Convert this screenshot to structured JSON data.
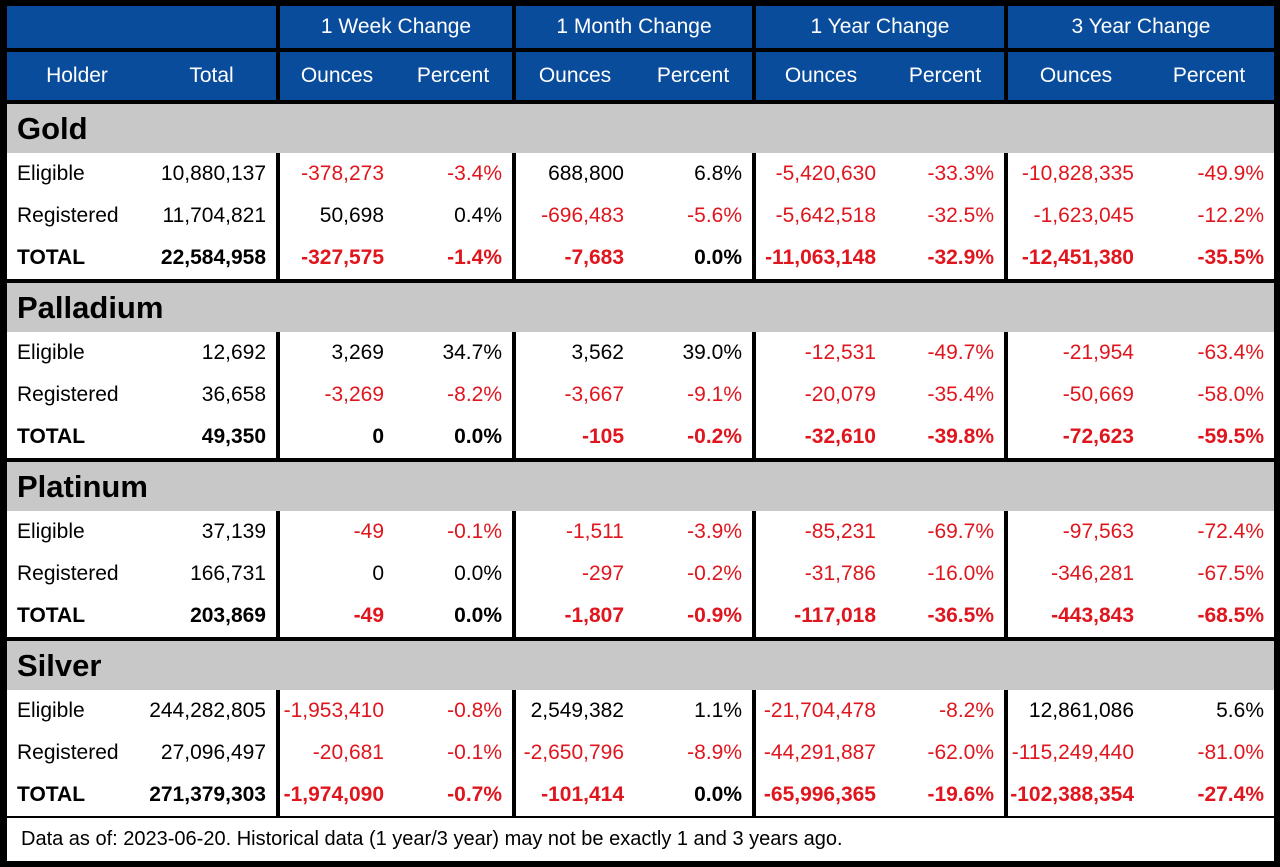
{
  "header": {
    "periods": [
      "1 Week Change",
      "1 Month Change",
      "1 Year Change",
      "3 Year Change"
    ],
    "holder": "Holder",
    "total": "Total",
    "ounces": "Ounces",
    "percent": "Percent"
  },
  "groups": [
    {
      "name": "Gold",
      "rows": [
        {
          "holder": "Eligible",
          "total": "10,880,137",
          "cells": [
            "-378,273",
            "-3.4%",
            "688,800",
            "6.8%",
            "-5,420,630",
            "-33.3%",
            "-10,828,335",
            "-49.9%"
          ]
        },
        {
          "holder": "Registered",
          "total": "11,704,821",
          "cells": [
            "50,698",
            "0.4%",
            "-696,483",
            "-5.6%",
            "-5,642,518",
            "-32.5%",
            "-1,623,045",
            "-12.2%"
          ]
        },
        {
          "holder": "TOTAL",
          "total": "22,584,958",
          "cells": [
            "-327,575",
            "-1.4%",
            "-7,683",
            "0.0%",
            "-11,063,148",
            "-32.9%",
            "-12,451,380",
            "-35.5%"
          ]
        }
      ]
    },
    {
      "name": "Palladium",
      "rows": [
        {
          "holder": "Eligible",
          "total": "12,692",
          "cells": [
            "3,269",
            "34.7%",
            "3,562",
            "39.0%",
            "-12,531",
            "-49.7%",
            "-21,954",
            "-63.4%"
          ]
        },
        {
          "holder": "Registered",
          "total": "36,658",
          "cells": [
            "-3,269",
            "-8.2%",
            "-3,667",
            "-9.1%",
            "-20,079",
            "-35.4%",
            "-50,669",
            "-58.0%"
          ]
        },
        {
          "holder": "TOTAL",
          "total": "49,350",
          "cells": [
            "0",
            "0.0%",
            "-105",
            "-0.2%",
            "-32,610",
            "-39.8%",
            "-72,623",
            "-59.5%"
          ]
        }
      ]
    },
    {
      "name": "Platinum",
      "rows": [
        {
          "holder": "Eligible",
          "total": "37,139",
          "cells": [
            "-49",
            "-0.1%",
            "-1,511",
            "-3.9%",
            "-85,231",
            "-69.7%",
            "-97,563",
            "-72.4%"
          ]
        },
        {
          "holder": "Registered",
          "total": "166,731",
          "cells": [
            "0",
            "0.0%",
            "-297",
            "-0.2%",
            "-31,786",
            "-16.0%",
            "-346,281",
            "-67.5%"
          ]
        },
        {
          "holder": "TOTAL",
          "total": "203,869",
          "cells": [
            "-49",
            "0.0%",
            "-1,807",
            "-0.9%",
            "-117,018",
            "-36.5%",
            "-443,843",
            "-68.5%"
          ]
        }
      ]
    },
    {
      "name": "Silver",
      "rows": [
        {
          "holder": "Eligible",
          "total": "244,282,805",
          "cells": [
            "-1,953,410",
            "-0.8%",
            "2,549,382",
            "1.1%",
            "-21,704,478",
            "-8.2%",
            "12,861,086",
            "5.6%"
          ]
        },
        {
          "holder": "Registered",
          "total": "27,096,497",
          "cells": [
            "-20,681",
            "-0.1%",
            "-2,650,796",
            "-8.9%",
            "-44,291,887",
            "-62.0%",
            "-115,249,440",
            "-81.0%"
          ]
        },
        {
          "holder": "TOTAL",
          "total": "271,379,303",
          "cells": [
            "-1,974,090",
            "-0.7%",
            "-101,414",
            "0.0%",
            "-65,996,365",
            "-19.6%",
            "-102,388,354",
            "-27.4%"
          ]
        }
      ]
    }
  ],
  "footer": "Data as of: 2023-06-20. Historical data (1 year/3 year) may not be exactly 1 and 3 years ago.",
  "colors": {
    "header_bg": "#0a4c9c",
    "group_bg": "#c8c8c8",
    "negative": "#e0161e"
  }
}
